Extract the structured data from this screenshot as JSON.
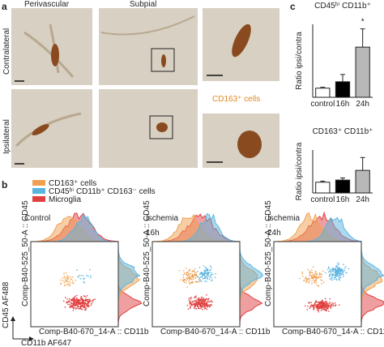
{
  "panels": [
    "a",
    "b",
    "c"
  ],
  "micrographs": {
    "columns": [
      "Perivascular",
      "Subpial"
    ],
    "rows": [
      "Contralateral",
      "Ipsilateral"
    ],
    "inset_label": "CD163⁺ cells"
  },
  "flow": {
    "legend": [
      "CD163⁺ cells",
      "CD45ʰⁱ CD11b⁺ CD163⁻ cells",
      "Microglia"
    ],
    "legend_colors": [
      "#f0a050",
      "#5ab4e0",
      "#e04040"
    ],
    "plots": [
      [
        "Control"
      ],
      [
        "Ischemia",
        "16h"
      ],
      [
        "Ischemia",
        "24h"
      ]
    ],
    "x_axis": "CD11b AF647",
    "y_axis": "CD45 AF488",
    "plot_x_label": "Comp-B40-670_14-A :: CD11b",
    "plot_y_label": "Comp-B40-525_50-A :: CD45"
  },
  "chart_data": [
    {
      "type": "bar",
      "title": "CD45ʰⁱ CD11b⁺",
      "y_label": "Ratio ipsi/contra",
      "categories": [
        "control",
        "16h",
        "24h"
      ],
      "values": [
        1.0,
        1.7,
        5.5
      ],
      "errors": [
        0.1,
        0.8,
        2.0
      ],
      "colors": [
        "#ffffff",
        "#000000",
        "#b8b8b8"
      ],
      "ylim": [
        0,
        8
      ],
      "annotation": "*"
    },
    {
      "type": "bar",
      "title": "CD163⁺ CD11b⁺",
      "y_label": "Ratio ipsi/contra",
      "categories": [
        "control",
        "16h",
        "24h"
      ],
      "values": [
        1.0,
        1.2,
        2.1
      ],
      "errors": [
        0.1,
        0.2,
        1.2
      ],
      "colors": [
        "#ffffff",
        "#000000",
        "#b8b8b8"
      ],
      "ylim": [
        0,
        4
      ]
    }
  ]
}
